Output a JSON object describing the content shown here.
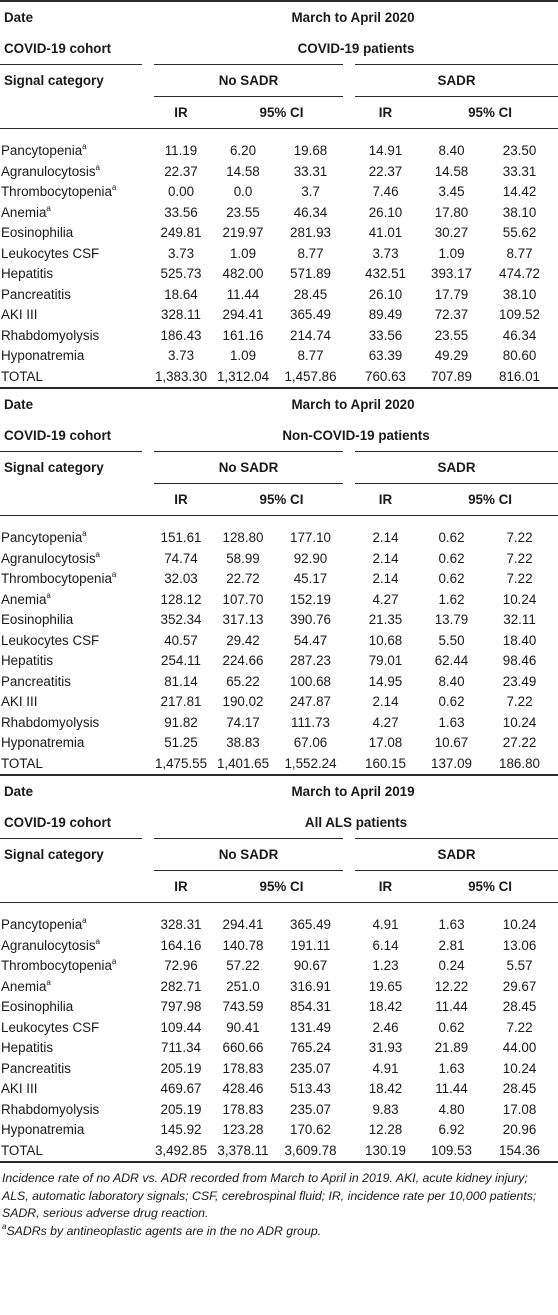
{
  "labels": {
    "date": "Date",
    "cohort": "COVID-19 cohort",
    "signal": "Signal category",
    "no_sadr": "No SADR",
    "sadr": "SADR",
    "ir": "IR",
    "ci": "95% CI"
  },
  "sections": [
    {
      "date": "March to April 2020",
      "cohort": "COVID-19 patients",
      "rows": [
        {
          "name": "Pancytopenia",
          "sup": "a",
          "vals": [
            "11.19",
            "6.20",
            "19.68",
            "14.91",
            "8.40",
            "23.50"
          ]
        },
        {
          "name": "Agranulocytosis",
          "sup": "a",
          "vals": [
            "22.37",
            "14.58",
            "33.31",
            "22.37",
            "14.58",
            "33.31"
          ]
        },
        {
          "name": "Thrombocytopenia",
          "sup": "a",
          "vals": [
            "0.00",
            "0.0",
            "3.7",
            "7.46",
            "3.45",
            "14.42"
          ]
        },
        {
          "name": "Anemia",
          "sup": "a",
          "vals": [
            "33.56",
            "23.55",
            "46.34",
            "26.10",
            "17.80",
            "38.10"
          ]
        },
        {
          "name": "Eosinophilia",
          "sup": "",
          "vals": [
            "249.81",
            "219.97",
            "281.93",
            "41.01",
            "30.27",
            "55.62"
          ]
        },
        {
          "name": "Leukocytes CSF",
          "sup": "",
          "vals": [
            "3.73",
            "1.09",
            "8.77",
            "3.73",
            "1.09",
            "8.77"
          ]
        },
        {
          "name": "Hepatitis",
          "sup": "",
          "vals": [
            "525.73",
            "482.00",
            "571.89",
            "432.51",
            "393.17",
            "474.72"
          ]
        },
        {
          "name": "Pancreatitis",
          "sup": "",
          "vals": [
            "18.64",
            "11.44",
            "28.45",
            "26.10",
            "17.79",
            "38.10"
          ]
        },
        {
          "name": "AKI III",
          "sup": "",
          "vals": [
            "328.11",
            "294.41",
            "365.49",
            "89.49",
            "72.37",
            "109.52"
          ]
        },
        {
          "name": "Rhabdomyolysis",
          "sup": "",
          "vals": [
            "186.43",
            "161.16",
            "214.74",
            "33.56",
            "23.55",
            "46.34"
          ]
        },
        {
          "name": "Hyponatremia",
          "sup": "",
          "vals": [
            "3.73",
            "1.09",
            "8.77",
            "63.39",
            "49.29",
            "80.60"
          ]
        },
        {
          "name": "TOTAL",
          "sup": "",
          "vals": [
            "1,383.30",
            "1,312.04",
            "1,457.86",
            "760.63",
            "707.89",
            "816.01"
          ]
        }
      ]
    },
    {
      "date": "March to April 2020",
      "cohort": "Non-COVID-19 patients",
      "rows": [
        {
          "name": "Pancytopenia",
          "sup": "a",
          "vals": [
            "151.61",
            "128.80",
            "177.10",
            "2.14",
            "0.62",
            "7.22"
          ]
        },
        {
          "name": "Agranulocytosis",
          "sup": "a",
          "vals": [
            "74.74",
            "58.99",
            "92.90",
            "2.14",
            "0.62",
            "7.22"
          ]
        },
        {
          "name": "Thrombocytopenia",
          "sup": "a",
          "vals": [
            "32.03",
            "22.72",
            "45.17",
            "2.14",
            "0.62",
            "7.22"
          ]
        },
        {
          "name": "Anemia",
          "sup": "a",
          "vals": [
            "128.12",
            "107.70",
            "152.19",
            "4.27",
            "1.62",
            "10.24"
          ]
        },
        {
          "name": "Eosinophilia",
          "sup": "",
          "vals": [
            "352.34",
            "317.13",
            "390.76",
            "21.35",
            "13.79",
            "32.11"
          ]
        },
        {
          "name": "Leukocytes CSF",
          "sup": "",
          "vals": [
            "40.57",
            "29.42",
            "54.47",
            "10.68",
            "5.50",
            "18.40"
          ]
        },
        {
          "name": "Hepatitis",
          "sup": "",
          "vals": [
            "254.11",
            "224.66",
            "287.23",
            "79.01",
            "62.44",
            "98.46"
          ]
        },
        {
          "name": "Pancreatitis",
          "sup": "",
          "vals": [
            "81.14",
            "65.22",
            "100.68",
            "14.95",
            "8.40",
            "23.49"
          ]
        },
        {
          "name": "AKI III",
          "sup": "",
          "vals": [
            "217.81",
            "190.02",
            "247.87",
            "2.14",
            "0.62",
            "7.22"
          ]
        },
        {
          "name": "Rhabdomyolysis",
          "sup": "",
          "vals": [
            "91.82",
            "74.17",
            "111.73",
            "4.27",
            "1.63",
            "10.24"
          ]
        },
        {
          "name": "Hyponatremia",
          "sup": "",
          "vals": [
            "51.25",
            "38.83",
            "67.06",
            "17.08",
            "10.67",
            "27.22"
          ]
        },
        {
          "name": "TOTAL",
          "sup": "",
          "vals": [
            "1,475.55",
            "1,401.65",
            "1,552.24",
            "160.15",
            "137.09",
            "186.80"
          ]
        }
      ]
    },
    {
      "date": "March to April 2019",
      "cohort": "All ALS patients",
      "rows": [
        {
          "name": "Pancytopenia",
          "sup": "a",
          "vals": [
            "328.31",
            "294.41",
            "365.49",
            "4.91",
            "1.63",
            "10.24"
          ]
        },
        {
          "name": "Agranulocytosis",
          "sup": "a",
          "vals": [
            "164.16",
            "140.78",
            "191.11",
            "6.14",
            "2.81",
            "13.06"
          ]
        },
        {
          "name": "Thrombocytopenia",
          "sup": "a",
          "vals": [
            "72.96",
            "57.22",
            "90.67",
            "1.23",
            "0.24",
            "5.57"
          ]
        },
        {
          "name": "Anemia",
          "sup": "a",
          "vals": [
            "282.71",
            "251.0",
            "316.91",
            "19.65",
            "12.22",
            "29.67"
          ]
        },
        {
          "name": "Eosinophilia",
          "sup": "",
          "vals": [
            "797.98",
            "743.59",
            "854.31",
            "18.42",
            "11.44",
            "28.45"
          ]
        },
        {
          "name": "Leukocytes CSF",
          "sup": "",
          "vals": [
            "109.44",
            "90.41",
            "131.49",
            "2.46",
            "0.62",
            "7.22"
          ]
        },
        {
          "name": "Hepatitis",
          "sup": "",
          "vals": [
            "711.34",
            "660.66",
            "765.24",
            "31.93",
            "21.89",
            "44.00"
          ]
        },
        {
          "name": "Pancreatitis",
          "sup": "",
          "vals": [
            "205.19",
            "178.83",
            "235.07",
            "4.91",
            "1.63",
            "10.24"
          ]
        },
        {
          "name": "AKI III",
          "sup": "",
          "vals": [
            "469.67",
            "428.46",
            "513.43",
            "18.42",
            "11.44",
            "28.45"
          ]
        },
        {
          "name": "Rhabdomyolysis",
          "sup": "",
          "vals": [
            "205.19",
            "178.83",
            "235.07",
            "9.83",
            "4.80",
            "17.08"
          ]
        },
        {
          "name": "Hyponatremia",
          "sup": "",
          "vals": [
            "145.92",
            "123.28",
            "170.62",
            "12.28",
            "6.92",
            "20.96"
          ]
        },
        {
          "name": "TOTAL",
          "sup": "",
          "vals": [
            "3,492.85",
            "3,378.11",
            "3,609.78",
            "130.19",
            "109.53",
            "154.36"
          ]
        }
      ]
    }
  ],
  "footnote": {
    "text": "Incidence rate of no ADR vs. ADR recorded from March to April in 2019. AKI, acute kidney injury; ALS, automatic laboratory signals; CSF, cerebrospinal fluid; IR, incidence rate per 10,000 patients; SADR, serious adverse drug reaction.",
    "sup": "a",
    "note": "SADRs by antineoplastic agents are in the no ADR group."
  }
}
